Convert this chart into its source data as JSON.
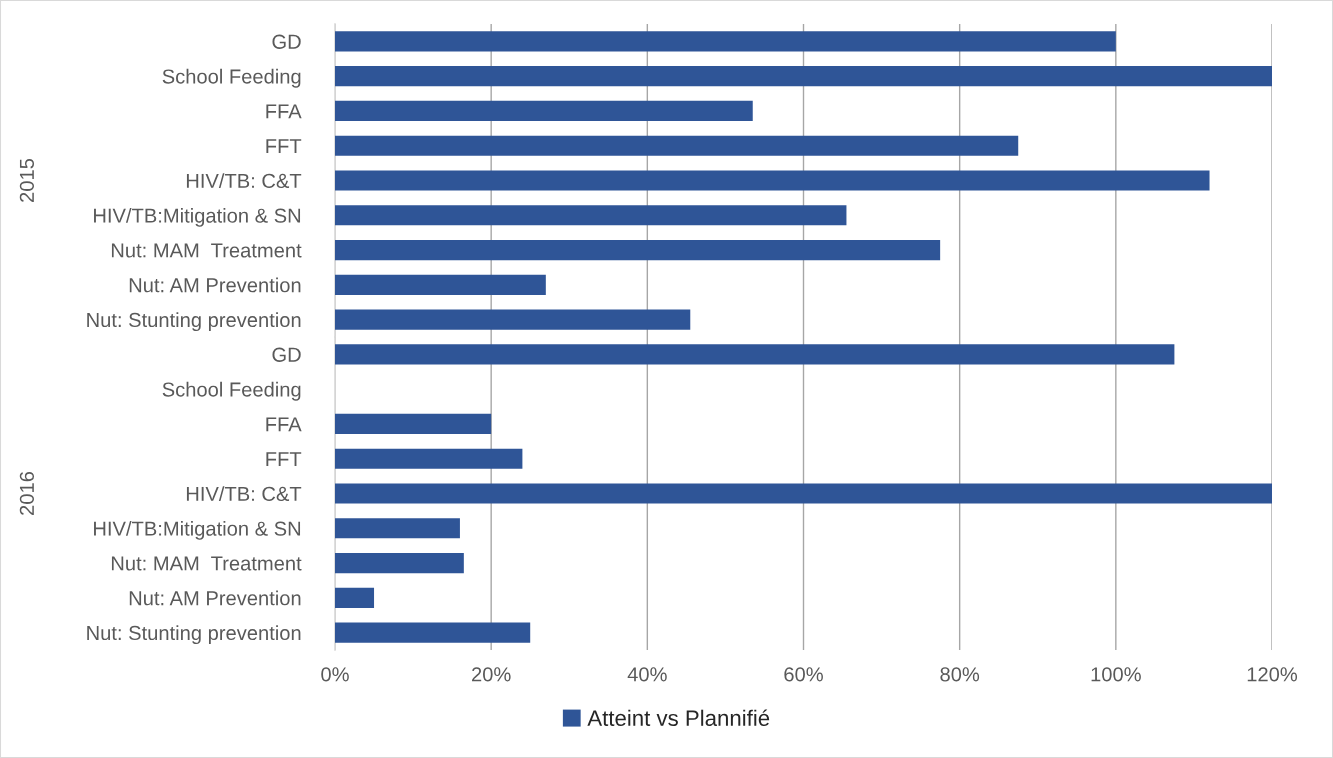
{
  "chart_data": [
    {
      "type": "bar",
      "orientation": "horizontal",
      "ylabel": "2015",
      "categories": [
        "GD",
        "School Feeding",
        "FFA",
        "FFT",
        "HIV/TB: C&T",
        "HIV/TB:Mitigation & SN",
        "Nut: MAM  Treatment",
        "Nut: AM Prevention",
        "Nut: Stunting prevention"
      ],
      "series": [
        {
          "color": "#2f5597",
          "values": [
            100,
            120,
            53.5,
            87.5,
            112,
            65.5,
            77.5,
            27,
            45.5
          ]
        }
      ],
      "xlim": [
        0,
        120
      ],
      "xticks": [
        {
          "value": 0,
          "label": null
        },
        {
          "value": 20,
          "label": null
        },
        {
          "value": 40,
          "label": null
        },
        {
          "value": 60,
          "label": null
        },
        {
          "value": 80,
          "label": null
        },
        {
          "value": 100,
          "label": null
        },
        {
          "value": 120,
          "label": null
        }
      ],
      "grid": "x",
      "tick_labels": "y"
    },
    {
      "type": "bar",
      "orientation": "horizontal",
      "ylabel": "2016",
      "categories": [
        "GD",
        "School Feeding",
        "FFA",
        "FFT",
        "HIV/TB: C&T",
        "HIV/TB:Mitigation & SN",
        "Nut: MAM  Treatment",
        "Nut: AM Prevention",
        "Nut: Stunting prevention"
      ],
      "series": [
        {
          "name": "Atteint vs Plannifié",
          "color": "#2f5597",
          "values": [
            107.5,
            null,
            20,
            24,
            120,
            16,
            16.5,
            5,
            25
          ]
        }
      ],
      "xlim": [
        0,
        120
      ],
      "xticks": [
        {
          "value": 0,
          "label": "0%"
        },
        {
          "value": 20,
          "label": "20%"
        },
        {
          "value": 40,
          "label": "40%"
        },
        {
          "value": 60,
          "label": "60%"
        },
        {
          "value": 80,
          "label": "80%"
        },
        {
          "value": 100,
          "label": "100%"
        },
        {
          "value": 120,
          "label": "120%"
        }
      ],
      "grid": "x",
      "legend": "bottom"
    }
  ]
}
